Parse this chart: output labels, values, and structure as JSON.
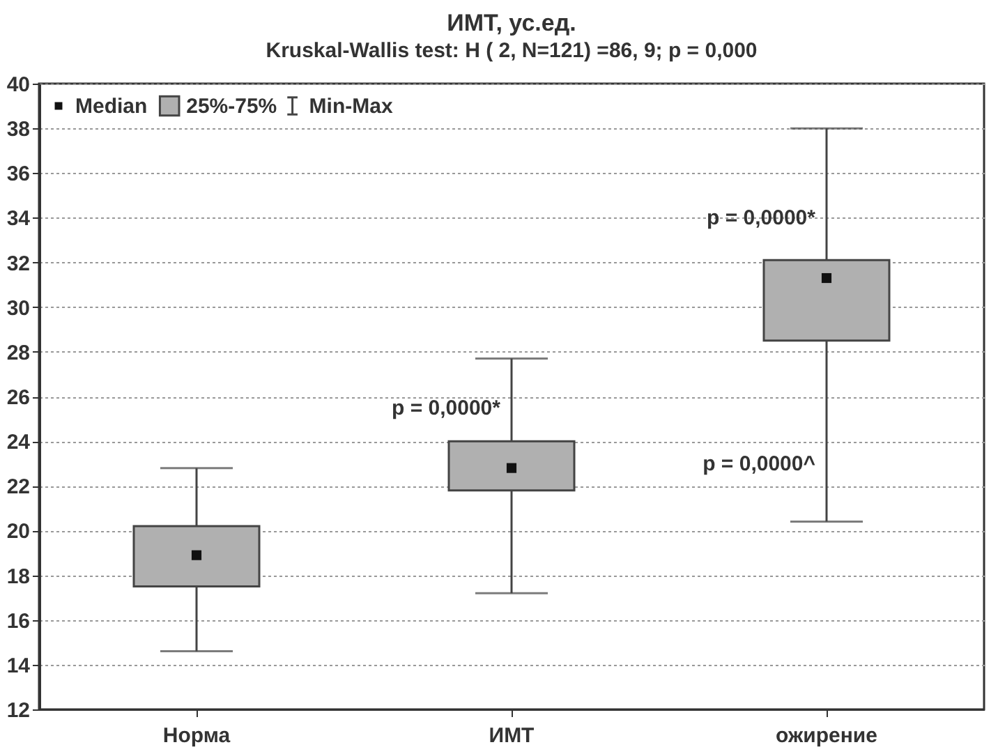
{
  "chart_data": {
    "type": "box",
    "title": "ИМТ, ус.ед.",
    "subtitle": "Kruskal-Wallis test: H ( 2, N=121) =86,    9; p = 0,000",
    "categories": [
      "Норма",
      "ИМТ",
      "ожирение"
    ],
    "series": [
      {
        "color": "#b0b0b0",
        "boxes": [
          {
            "low": 14.6,
            "q1": 17.5,
            "median": 18.9,
            "q3": 20.2,
            "high": 22.8
          },
          {
            "low": 17.2,
            "q1": 21.8,
            "median": 22.8,
            "q3": 24.0,
            "high": 27.7
          },
          {
            "low": 20.4,
            "q1": 28.5,
            "median": 31.3,
            "q3": 32.1,
            "high": 38.0
          }
        ]
      }
    ],
    "ylim": [
      12,
      40
    ],
    "yticks": [
      12,
      14,
      16,
      18,
      20,
      22,
      24,
      26,
      28,
      30,
      32,
      34,
      36,
      38,
      40
    ],
    "grid": "y",
    "annotations": [
      "Median",
      "25%-75%",
      "Min-Max",
      {
        "text": "p = 0,0000*",
        "x": "ИМТ",
        "y": 25.5
      },
      {
        "text": "p = 0,0000*",
        "x": "ожирение",
        "y": 34.0
      },
      {
        "text": "p = 0,0000^",
        "x": "ожирение",
        "y": 23.0
      }
    ]
  }
}
